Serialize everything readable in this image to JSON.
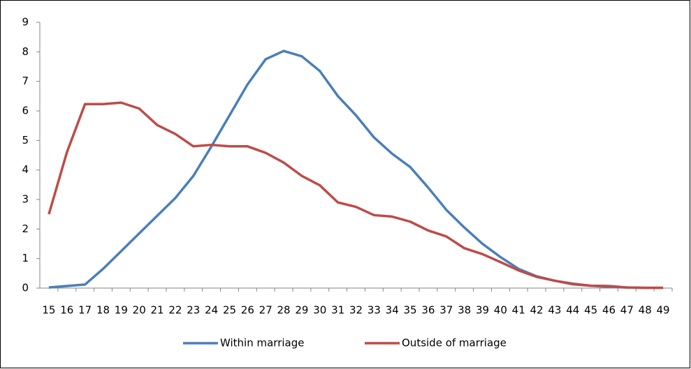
{
  "chart_data": {
    "type": "line",
    "categories": [
      "15",
      "16",
      "17",
      "18",
      "19",
      "20",
      "21",
      "22",
      "23",
      "24",
      "25",
      "26",
      "27",
      "28",
      "29",
      "30",
      "31",
      "32",
      "33",
      "34",
      "35",
      "36",
      "37",
      "38",
      "39",
      "40",
      "41",
      "42",
      "43",
      "44",
      "45",
      "46",
      "47",
      "48",
      "49"
    ],
    "series": [
      {
        "name": "Within marriage",
        "color": "#4a7ebb",
        "values": [
          0.02,
          0.07,
          0.12,
          0.65,
          1.25,
          1.85,
          2.45,
          3.05,
          3.8,
          4.8,
          5.85,
          6.9,
          7.75,
          8.03,
          7.85,
          7.35,
          6.5,
          5.85,
          5.1,
          4.55,
          4.1,
          3.4,
          2.65,
          2.05,
          1.5,
          1.05,
          0.65,
          0.4,
          0.25,
          0.15,
          0.08,
          0.04,
          0.02,
          0.01,
          0.01
        ]
      },
      {
        "name": "Outside of marriage",
        "color": "#be4b48",
        "values": [
          2.5,
          4.6,
          6.23,
          6.23,
          6.28,
          6.08,
          5.52,
          5.22,
          4.8,
          4.85,
          4.8,
          4.8,
          4.58,
          4.25,
          3.8,
          3.48,
          2.9,
          2.75,
          2.47,
          2.42,
          2.25,
          1.95,
          1.75,
          1.35,
          1.15,
          0.88,
          0.6,
          0.38,
          0.25,
          0.13,
          0.08,
          0.07,
          0.02,
          0.01,
          0.01
        ]
      }
    ],
    "ylim": [
      0,
      9
    ],
    "yticks": [
      0,
      1,
      2,
      3,
      4,
      5,
      6,
      7,
      8,
      9
    ],
    "grid": false,
    "legend": "bottom"
  }
}
